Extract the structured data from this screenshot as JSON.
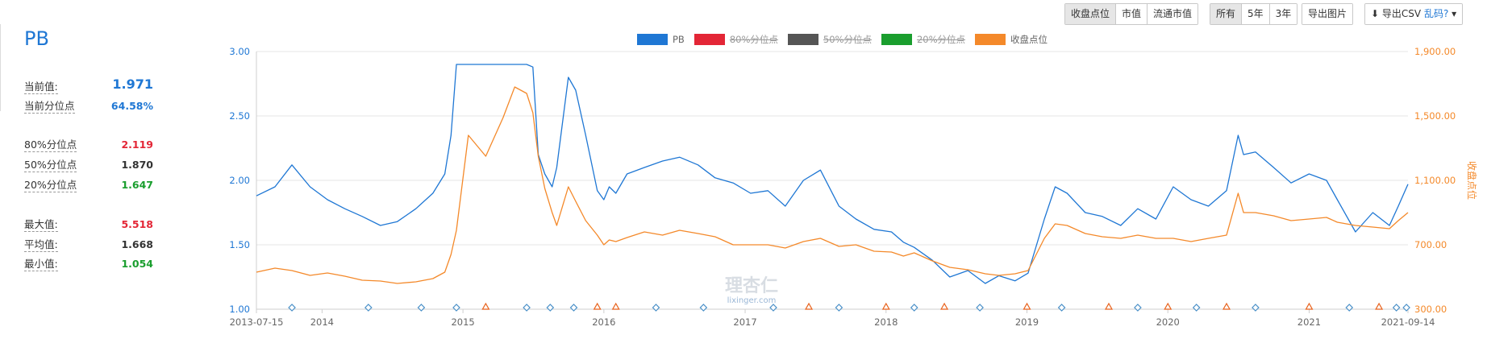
{
  "stats": {
    "title": "PB",
    "rows": [
      {
        "label": "当前值:",
        "value": "1.971",
        "color": "#1f77d4"
      },
      {
        "label": "当前分位点",
        "value": "64.58%",
        "color": "#1f77d4"
      },
      {
        "label": "80%分位点",
        "value": "2.119",
        "color": "#e32636"
      },
      {
        "label": "50%分位点",
        "value": "1.870",
        "color": "#333333"
      },
      {
        "label": "20%分位点",
        "value": "1.647",
        "color": "#1a9e2e"
      },
      {
        "label": "最大值:",
        "value": "5.518",
        "color": "#e32636"
      },
      {
        "label": "平均值:",
        "value": "1.668",
        "color": "#333333"
      },
      {
        "label": "最小值:",
        "value": "1.054",
        "color": "#1a9e2e"
      }
    ]
  },
  "toolbar": {
    "value_type": {
      "options": [
        "收盘点位",
        "市值",
        "流通市值"
      ],
      "active": "收盘点位"
    },
    "range": {
      "options": [
        "所有",
        "5年",
        "3年"
      ],
      "active": "所有"
    },
    "export_image": "导出图片",
    "export_csv": "导出CSV",
    "csv_help": "乱码?"
  },
  "chart_data": {
    "type": "line",
    "legend": [
      {
        "name": "PB",
        "color": "#1f77d4",
        "enabled": true
      },
      {
        "name": "80%分位点",
        "color": "#e32636",
        "enabled": false
      },
      {
        "name": "50%分位点",
        "color": "#555555",
        "enabled": false
      },
      {
        "name": "20%分位点",
        "color": "#1a9e2e",
        "enabled": false
      },
      {
        "name": "收盘点位",
        "color": "#f4892a",
        "enabled": true
      }
    ],
    "x_ticks": [
      "2013-07-15",
      "2014",
      "2015",
      "2016",
      "2017",
      "2018",
      "2019",
      "2020",
      "2021",
      "2021-09-14"
    ],
    "x_range": [
      "2013-07-15",
      "2021-09-14"
    ],
    "y_left": {
      "label": "",
      "ticks": [
        "1.00",
        "1.50",
        "2.00",
        "2.50",
        "3.00"
      ],
      "range": [
        1.0,
        3.0
      ]
    },
    "y_right": {
      "label": "收盘点位",
      "ticks": [
        "300.00",
        "700.00",
        "1,100.00",
        "1,500.00",
        "1,900.00"
      ],
      "range": [
        300,
        1900
      ]
    },
    "watermark": {
      "text": "理杏仁",
      "sub": "lixinger.com"
    },
    "series": [
      {
        "name": "PB",
        "axis": "left",
        "color": "#1f77d4",
        "x": [
          "2013-07-15",
          "2013-09-01",
          "2013-10-15",
          "2013-12-01",
          "2014-01-15",
          "2014-03-01",
          "2014-04-15",
          "2014-06-01",
          "2014-07-15",
          "2014-09-01",
          "2014-10-15",
          "2014-11-15",
          "2014-12-01",
          "2014-12-15",
          "2015-01-15",
          "2015-03-01",
          "2015-04-15",
          "2015-05-15",
          "2015-06-15",
          "2015-07-01",
          "2015-07-15",
          "2015-08-01",
          "2015-08-20",
          "2015-09-01",
          "2015-10-01",
          "2015-10-20",
          "2015-11-15",
          "2015-12-15",
          "2016-01-01",
          "2016-01-15",
          "2016-02-01",
          "2016-03-01",
          "2016-04-15",
          "2016-06-01",
          "2016-07-15",
          "2016-09-01",
          "2016-10-15",
          "2016-12-01",
          "2017-01-15",
          "2017-03-01",
          "2017-04-15",
          "2017-06-01",
          "2017-07-15",
          "2017-09-01",
          "2017-10-15",
          "2017-12-01",
          "2018-01-15",
          "2018-02-15",
          "2018-03-15",
          "2018-05-01",
          "2018-06-15",
          "2018-08-01",
          "2018-09-15",
          "2018-10-20",
          "2018-12-01",
          "2019-01-04",
          "2019-02-15",
          "2019-03-15",
          "2019-04-15",
          "2019-06-01",
          "2019-07-15",
          "2019-09-01",
          "2019-10-15",
          "2019-12-01",
          "2020-01-15",
          "2020-03-01",
          "2020-04-15",
          "2020-06-01",
          "2020-07-01",
          "2020-07-15",
          "2020-08-15",
          "2020-10-01",
          "2020-11-15",
          "2021-01-01",
          "2021-02-15",
          "2021-03-15",
          "2021-05-01",
          "2021-06-15",
          "2021-07-28",
          "2021-08-20",
          "2021-09-14"
        ],
        "values": [
          1.88,
          1.95,
          2.12,
          1.95,
          1.85,
          1.78,
          1.72,
          1.65,
          1.68,
          1.78,
          1.9,
          2.05,
          2.35,
          2.9,
          2.9,
          2.9,
          2.9,
          2.9,
          2.9,
          2.88,
          2.2,
          2.05,
          1.95,
          2.1,
          2.8,
          2.7,
          2.35,
          1.92,
          1.85,
          1.95,
          1.9,
          2.05,
          2.1,
          2.15,
          2.18,
          2.12,
          2.02,
          1.98,
          1.9,
          1.92,
          1.8,
          2.0,
          2.08,
          1.8,
          1.7,
          1.62,
          1.6,
          1.52,
          1.48,
          1.38,
          1.25,
          1.3,
          1.2,
          1.26,
          1.22,
          1.28,
          1.7,
          1.95,
          1.9,
          1.75,
          1.72,
          1.65,
          1.78,
          1.7,
          1.95,
          1.85,
          1.8,
          1.92,
          2.35,
          2.2,
          2.22,
          2.1,
          1.98,
          2.05,
          2.0,
          1.85,
          1.6,
          1.75,
          1.65,
          1.8,
          1.97
        ]
      },
      {
        "name": "收盘点位",
        "axis": "right",
        "color": "#f4892a",
        "x": [
          "2013-07-15",
          "2013-09-01",
          "2013-10-15",
          "2013-12-01",
          "2014-01-15",
          "2014-03-01",
          "2014-04-15",
          "2014-06-01",
          "2014-07-15",
          "2014-09-01",
          "2014-10-15",
          "2014-11-15",
          "2014-12-01",
          "2014-12-15",
          "2015-01-15",
          "2015-03-01",
          "2015-04-15",
          "2015-05-15",
          "2015-06-15",
          "2015-07-01",
          "2015-07-15",
          "2015-08-01",
          "2015-08-20",
          "2015-09-01",
          "2015-10-01",
          "2015-10-20",
          "2015-11-15",
          "2015-12-15",
          "2016-01-01",
          "2016-01-15",
          "2016-02-01",
          "2016-03-01",
          "2016-04-15",
          "2016-06-01",
          "2016-07-15",
          "2016-09-01",
          "2016-10-15",
          "2016-12-01",
          "2017-01-15",
          "2017-03-01",
          "2017-04-15",
          "2017-06-01",
          "2017-07-15",
          "2017-09-01",
          "2017-10-15",
          "2017-12-01",
          "2018-01-15",
          "2018-02-15",
          "2018-03-15",
          "2018-05-01",
          "2018-06-15",
          "2018-08-01",
          "2018-09-15",
          "2018-10-20",
          "2018-12-01",
          "2019-01-04",
          "2019-02-15",
          "2019-03-15",
          "2019-04-15",
          "2019-06-01",
          "2019-07-15",
          "2019-09-01",
          "2019-10-15",
          "2019-12-01",
          "2020-01-15",
          "2020-03-01",
          "2020-04-15",
          "2020-06-01",
          "2020-07-01",
          "2020-07-15",
          "2020-08-15",
          "2020-10-01",
          "2020-11-15",
          "2021-01-01",
          "2021-02-15",
          "2021-03-15",
          "2021-05-01",
          "2021-06-15",
          "2021-07-28",
          "2021-08-20",
          "2021-09-14"
        ],
        "values": [
          530,
          555,
          540,
          510,
          525,
          505,
          480,
          475,
          460,
          470,
          490,
          530,
          640,
          790,
          1380,
          1250,
          1490,
          1680,
          1640,
          1520,
          1250,
          1050,
          900,
          820,
          1060,
          970,
          850,
          760,
          700,
          730,
          720,
          745,
          780,
          760,
          790,
          770,
          750,
          700,
          700,
          700,
          680,
          720,
          740,
          690,
          700,
          660,
          655,
          630,
          650,
          600,
          560,
          545,
          520,
          510,
          520,
          540,
          740,
          830,
          820,
          770,
          750,
          740,
          760,
          740,
          740,
          720,
          740,
          760,
          1020,
          900,
          900,
          880,
          850,
          860,
          870,
          840,
          820,
          810,
          800,
          850,
          900
        ]
      }
    ],
    "event_markers": {
      "blue_triangles": [
        "2015-03-01",
        "2015-12-15",
        "2016-02-01",
        "2017-06-15",
        "2018-01-01",
        "2018-06-01",
        "2019-01-01",
        "2019-08-01",
        "2020-01-01",
        "2020-06-01",
        "2021-01-01",
        "2021-07-01"
      ],
      "orange_diamonds": [
        "2013-10-15",
        "2014-05-01",
        "2014-09-15",
        "2014-12-15",
        "2015-06-15",
        "2015-08-15",
        "2015-10-15",
        "2016-05-15",
        "2016-09-15",
        "2017-03-15",
        "2017-09-01",
        "2018-03-15",
        "2018-09-01",
        "2019-04-01",
        "2019-10-15",
        "2020-03-15",
        "2020-08-15",
        "2021-04-15",
        "2021-08-15",
        "2021-09-10"
      ]
    }
  }
}
